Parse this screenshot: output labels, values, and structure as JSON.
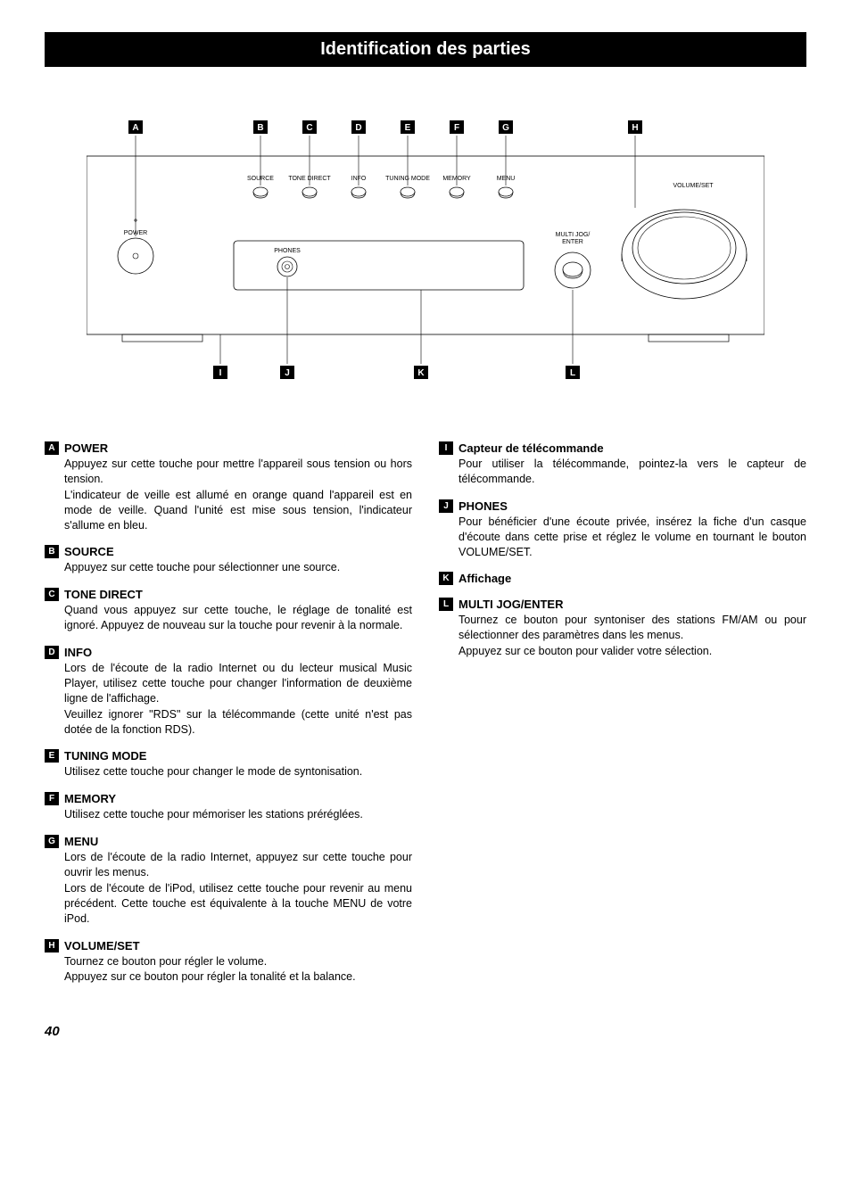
{
  "title": "Identification des parties",
  "page_number": "40",
  "diagram": {
    "top_labels": [
      "A",
      "B",
      "C",
      "D",
      "E",
      "F",
      "G",
      "H"
    ],
    "bottom_labels": [
      "I",
      "J",
      "K",
      "L"
    ],
    "button_texts": [
      "SOURCE",
      "TONE DIRECT",
      "INFO",
      "TUNING MODE",
      "MEMORY",
      "MENU"
    ],
    "power_label": "POWER",
    "phones_label": "PHONES",
    "volume_label": "VOLUME/SET",
    "jog_label": "MULTI JOG/\nENTER",
    "font_small": 7,
    "colors": {
      "stroke": "#000000",
      "bg": "#ffffff",
      "badge_bg": "#000000",
      "badge_fg": "#ffffff"
    }
  },
  "left_items": [
    {
      "letter": "A",
      "title": "POWER",
      "paras": [
        "Appuyez sur cette touche pour mettre l'appareil sous tension ou hors tension.",
        "L'indicateur de veille est allumé en orange quand l'appareil est en mode de veille. Quand l'unité est mise sous tension, l'indicateur s'allume en bleu."
      ]
    },
    {
      "letter": "B",
      "title": "SOURCE",
      "paras": [
        "Appuyez sur cette touche pour sélectionner une source."
      ]
    },
    {
      "letter": "C",
      "title": "TONE DIRECT",
      "paras": [
        "Quand vous appuyez sur cette touche, le réglage de tonalité est ignoré. Appuyez de nouveau sur la touche pour revenir à la normale."
      ]
    },
    {
      "letter": "D",
      "title": "INFO",
      "paras": [
        "Lors de l'écoute de la radio Internet ou du lecteur musical Music Player, utilisez cette touche pour changer l'information de deuxième ligne de l'affichage.",
        "Veuillez ignorer \"RDS\" sur la télécommande (cette unité n'est pas dotée de la fonction RDS)."
      ]
    },
    {
      "letter": "E",
      "title": "TUNING MODE",
      "paras": [
        "Utilisez cette touche pour changer le mode de syntonisation."
      ]
    },
    {
      "letter": "F",
      "title": "MEMORY",
      "paras": [
        "Utilisez cette touche pour mémoriser les stations préréglées."
      ]
    },
    {
      "letter": "G",
      "title": "MENU",
      "paras": [
        "Lors de l'écoute de la radio Internet, appuyez sur cette touche pour ouvrir les menus.",
        "Lors de l'écoute de l'iPod, utilisez cette touche pour revenir au menu précédent. Cette touche est équivalente à la touche MENU de votre iPod."
      ]
    },
    {
      "letter": "H",
      "title": "VOLUME/SET",
      "paras": [
        "Tournez ce bouton pour régler le volume.",
        "Appuyez sur ce bouton pour régler la tonalité et la balance."
      ]
    }
  ],
  "right_items": [
    {
      "letter": "I",
      "title": "Capteur de télécommande",
      "paras": [
        "Pour utiliser la télécommande, pointez-la vers le capteur de télécommande."
      ]
    },
    {
      "letter": "J",
      "title": "PHONES",
      "paras": [
        "Pour bénéficier d'une écoute privée, insérez la fiche d'un casque d'écoute dans cette prise et réglez le volume en tournant le bouton VOLUME/SET."
      ]
    },
    {
      "letter": "K",
      "title": "Affichage",
      "paras": []
    },
    {
      "letter": "L",
      "title": "MULTI JOG/ENTER",
      "paras": [
        "Tournez ce bouton pour syntoniser des stations FM/AM ou pour sélectionner des paramètres dans les menus.",
        "Appuyez sur ce bouton pour valider votre sélection."
      ]
    }
  ]
}
